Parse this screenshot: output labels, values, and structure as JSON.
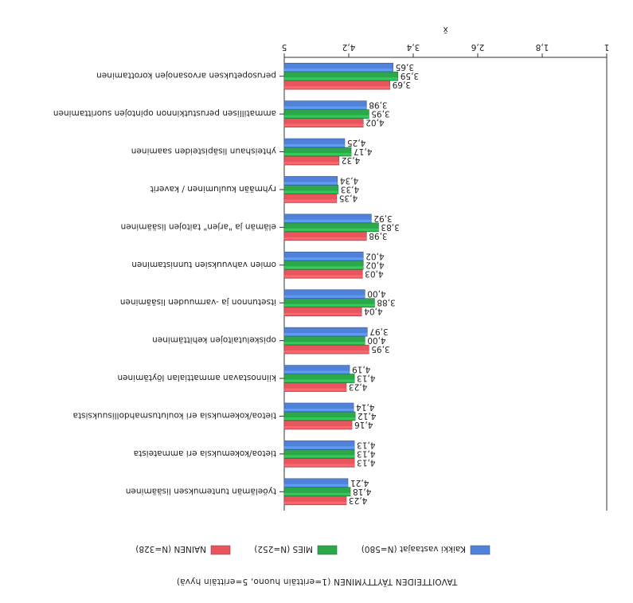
{
  "chart_data": {
    "type": "bar",
    "orientation": "horizontal",
    "rendered_rotation_degrees": 180,
    "xlabel": "TAVOITTEIDEN TÄYTTYMINEN (1=erittäin huono, 5=erittäin hyvä)",
    "axis_title": "x̄",
    "xlim": [
      1,
      5
    ],
    "ticks": [
      "1",
      "1,8",
      "2,6",
      "3,4",
      "4,2",
      "5"
    ],
    "tick_values": [
      1,
      1.8,
      2.6,
      3.4,
      4.2,
      5
    ],
    "grid": false,
    "legend_position": "bottom",
    "categories": [
      "työelämän tuntemuksen lisääminen",
      "tietoa/kokemuksia eri ammateista",
      "tietoa/kokemuksia eri koulutusmahdollisuuksista",
      "kiinnostavan ammattialan löytäminen",
      "opiskelutaitojen kehittäminen",
      "itsetunnon ja -varmuuden lisääminen",
      "omien vahvuuksien tunnistaminen",
      "elämän ja \"arjen\" taitojen lisääminen",
      "ryhmään kuuluminen / kaverit",
      "yhteishaun lisäpisteiden saaminen",
      "ammatillisen perustutkinnon opintojen suorittaminen",
      "perusopetuksen arvosanojen korottaminen"
    ],
    "series": [
      {
        "name": "NAINEN (N=328)",
        "color": "#e8555d",
        "values": [
          4.23,
          4.13,
          4.16,
          4.23,
          3.95,
          4.04,
          4.03,
          3.98,
          4.35,
          4.32,
          4.02,
          3.69
        ],
        "labels": [
          "4,23",
          "4,13",
          "4,16",
          "4,23",
          "3,95",
          "4,04",
          "4,03",
          "3,98",
          "4,35",
          "4,32",
          "4,02",
          "3,69"
        ]
      },
      {
        "name": "MIES (N=252)",
        "color": "#2ba84a",
        "values": [
          4.18,
          4.13,
          4.12,
          4.13,
          4.0,
          3.88,
          4.02,
          3.83,
          4.33,
          4.17,
          3.95,
          3.59
        ],
        "labels": [
          "4,18",
          "4,13",
          "4,12",
          "4,13",
          "4,00",
          "3,88",
          "4,02",
          "3,83",
          "4,33",
          "4,17",
          "3,95",
          "3,59"
        ]
      },
      {
        "name": "Kaikki vastaajat (N=580)",
        "color": "#4f82d8",
        "values": [
          4.21,
          4.13,
          4.14,
          4.19,
          3.97,
          4.0,
          4.02,
          3.92,
          4.34,
          4.25,
          3.98,
          3.65
        ],
        "labels": [
          "4,21",
          "4,13",
          "4,14",
          "4,19",
          "3,97",
          "4,00",
          "4,02",
          "3,92",
          "4,34",
          "4,25",
          "3,98",
          "3,65"
        ]
      }
    ]
  }
}
